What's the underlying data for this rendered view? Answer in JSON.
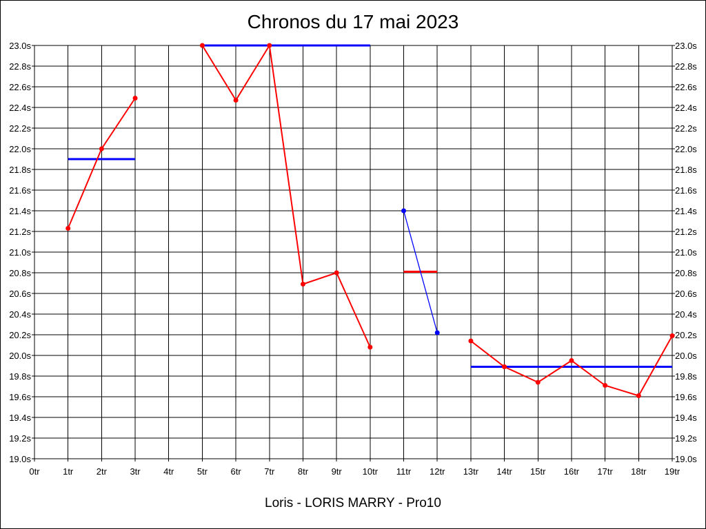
{
  "chart_data": {
    "type": "line",
    "title": "Chronos du 17 mai 2023",
    "footer": "Loris - LORIS MARRY - Pro10",
    "x_ticks": [
      "0tr",
      "1tr",
      "2tr",
      "3tr",
      "4tr",
      "5tr",
      "6tr",
      "7tr",
      "8tr",
      "9tr",
      "10tr",
      "11tr",
      "12tr",
      "13tr",
      "14tr",
      "15tr",
      "16tr",
      "17tr",
      "18tr",
      "19tr"
    ],
    "y_ticks": [
      "19.0s",
      "19.2s",
      "19.4s",
      "19.6s",
      "19.8s",
      "20.0s",
      "20.2s",
      "20.4s",
      "20.6s",
      "20.8s",
      "21.0s",
      "21.2s",
      "21.4s",
      "21.6s",
      "21.8s",
      "22.0s",
      "22.2s",
      "22.4s",
      "22.6s",
      "22.8s",
      "23.0s"
    ],
    "xlim": [
      0,
      19
    ],
    "ylim": [
      19.0,
      23.0
    ],
    "grid": true,
    "colors": {
      "lap": "#ff0000",
      "average": "#0000ff",
      "alt_lap": "#0000ff",
      "alt_average": "#ff0000",
      "grid": "#000000"
    },
    "series": [
      {
        "color": "lap",
        "values": [
          [
            1,
            21.23
          ],
          [
            2,
            22.0
          ],
          [
            3,
            22.49
          ]
        ]
      },
      {
        "color": "lap",
        "values": [
          [
            5,
            23.0
          ],
          [
            6,
            22.47
          ],
          [
            7,
            23.0
          ],
          [
            8,
            20.69
          ],
          [
            9,
            20.8
          ],
          [
            10,
            20.08
          ]
        ]
      },
      {
        "color": "alt_lap",
        "values": [
          [
            11,
            21.4
          ],
          [
            12,
            20.22
          ]
        ]
      },
      {
        "color": "lap",
        "values": [
          [
            13,
            20.14
          ],
          [
            14,
            19.89
          ],
          [
            15,
            19.74
          ],
          [
            16,
            19.95
          ],
          [
            17,
            19.71
          ],
          [
            18,
            19.61
          ],
          [
            19,
            20.19
          ]
        ]
      }
    ],
    "averages": [
      {
        "color": "average",
        "x": [
          1,
          3
        ],
        "value": 21.9
      },
      {
        "color": "average",
        "x": [
          5,
          10
        ],
        "value": 23.0
      },
      {
        "color": "alt_average",
        "x": [
          11,
          12
        ],
        "value": 20.81
      },
      {
        "color": "average",
        "x": [
          13,
          19
        ],
        "value": 19.89
      }
    ]
  }
}
